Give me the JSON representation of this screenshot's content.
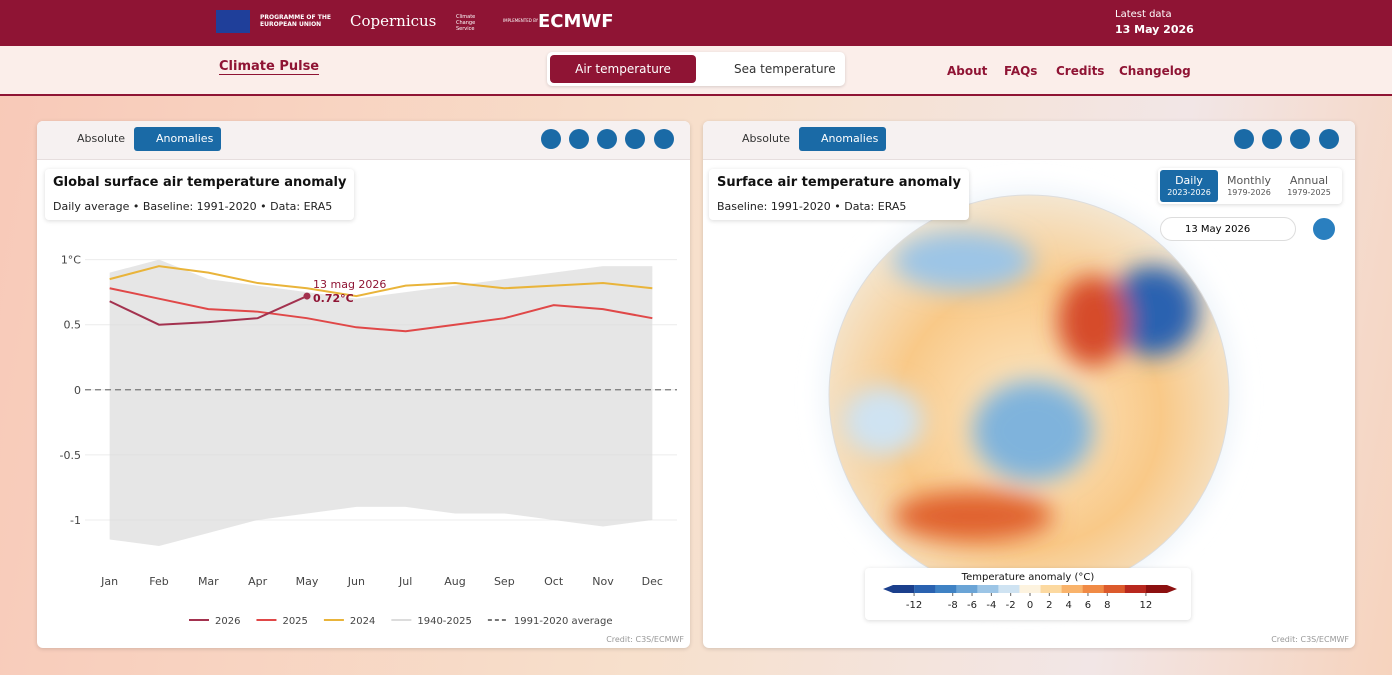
{
  "header": {
    "eu": "PROGRAMME OF THE EUROPEAN UNION",
    "copernicus": "Copernicus",
    "ccs": "Climate Change Service",
    "implemented": "IMPLEMENTED BY",
    "ecmwf": "ECMWF",
    "latest_label": "Latest data",
    "latest_date": "13 May 2026"
  },
  "nav": {
    "brand": "Climate Pulse",
    "tabs": [
      "Air temperature",
      "Sea temperature"
    ],
    "links": [
      "About",
      "FAQs",
      "Credits",
      "Changelog"
    ]
  },
  "left_panel": {
    "toggle": [
      "Absolute",
      "Anomalies"
    ],
    "credit": "Credit: C3S/ECMWF",
    "chart_data": {
      "type": "line",
      "title": "Global surface air temperature anomaly",
      "subtitle": "Daily average • Baseline: 1991-2020 • Data: ERA5",
      "categories": [
        "Jan",
        "Feb",
        "Mar",
        "Apr",
        "May",
        "Jun",
        "Jul",
        "Aug",
        "Sep",
        "Oct",
        "Nov",
        "Dec"
      ],
      "ylim": [
        -1.3,
        1.12
      ],
      "yticks": [
        {
          "value": 1,
          "label": "1°C"
        },
        0.5,
        0,
        {
          "value": -0.5,
          "label": "-0.5"
        },
        {
          "value": -1,
          "label": "-1"
        }
      ],
      "grid": true,
      "band": {
        "name": "1940-2025",
        "color": "#dcdcdc",
        "high": [
          0.9,
          1.0,
          0.85,
          0.8,
          0.75,
          0.7,
          0.75,
          0.8,
          0.85,
          0.9,
          0.95,
          0.95
        ],
        "low": [
          -1.15,
          -1.2,
          -1.1,
          -1.0,
          -0.95,
          -0.9,
          -0.9,
          -0.95,
          -0.95,
          -1.0,
          -1.05,
          -1.0
        ]
      },
      "reference": {
        "name": "1991-2020 average",
        "value": 0,
        "color": "#777"
      },
      "series": [
        {
          "name": "2026",
          "color": "#a3324f",
          "values": [
            0.68,
            0.5,
            0.52,
            0.55,
            0.72,
            null,
            null,
            null,
            null,
            null,
            null,
            null
          ]
        },
        {
          "name": "2025",
          "color": "#e04848",
          "values": [
            0.78,
            0.7,
            0.62,
            0.6,
            0.55,
            0.48,
            0.45,
            0.5,
            0.55,
            0.65,
            0.62,
            0.55
          ]
        },
        {
          "name": "2024",
          "color": "#e9b43a",
          "values": [
            0.85,
            0.95,
            0.9,
            0.82,
            0.78,
            0.72,
            0.8,
            0.82,
            0.78,
            0.8,
            0.82,
            0.78
          ]
        }
      ],
      "annotation": {
        "text": "13 mag 2026",
        "value": 0.72,
        "label": "0.72°C"
      }
    }
  },
  "right_panel": {
    "toggle": [
      "Absolute",
      "Anomalies"
    ],
    "title": "Surface air temperature anomaly",
    "subtitle": "Baseline: 1991-2020 • Data: ERA5",
    "periods": [
      {
        "label": "Daily",
        "range": "2023-2026"
      },
      {
        "label": "Monthly",
        "range": "1979-2026"
      },
      {
        "label": "Annual",
        "range": "1979-2025"
      }
    ],
    "date": "13 May 2026",
    "credit": "Credit: C3S/ECMWF",
    "colorbar": {
      "title": "Temperature anomaly (°C)",
      "ticks": [
        -12,
        -8,
        -6,
        -4,
        -2,
        0,
        2,
        4,
        6,
        8,
        12
      ],
      "colors": [
        "#1b3f8c",
        "#2a62b0",
        "#3f82c4",
        "#6aa4d6",
        "#9cc5e6",
        "#cfe3f2",
        "#fdf3df",
        "#fcd9a0",
        "#f9b36b",
        "#f08a45",
        "#dc5a2c",
        "#b8281e",
        "#8c1010"
      ]
    }
  }
}
